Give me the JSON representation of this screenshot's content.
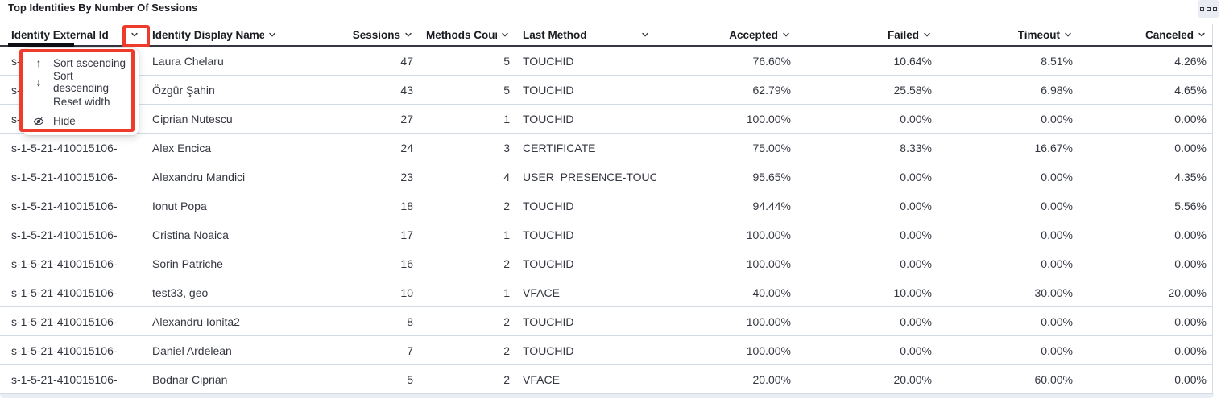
{
  "panel": {
    "title": "Top Identities By Number Of Sessions",
    "options_button_icon": "boxes-horizontal-icon"
  },
  "annotation_color": "#ee3b2b",
  "menu": {
    "items": [
      {
        "icon": "arrow-up",
        "label": "Sort ascending"
      },
      {
        "icon": "arrow-down",
        "label": "Sort descending"
      },
      {
        "icon": "",
        "label": "Reset width"
      },
      {
        "icon": "eye-slash",
        "label": "Hide"
      }
    ]
  },
  "table": {
    "columns": [
      {
        "label": "Identity External Id",
        "align": "left"
      },
      {
        "label": "Identity Display Name",
        "align": "left"
      },
      {
        "label": "Sessions",
        "align": "right"
      },
      {
        "label": "Methods Count",
        "align": "right"
      },
      {
        "label": "Last Method",
        "align": "left"
      },
      {
        "label": "Accepted",
        "align": "right"
      },
      {
        "label": "Failed",
        "align": "right"
      },
      {
        "label": "Timeout",
        "align": "right"
      },
      {
        "label": "Canceled",
        "align": "right"
      }
    ],
    "rows": [
      [
        "s-1-5-21-410015106-",
        "Laura Chelaru",
        "47",
        "5",
        "TOUCHID",
        "76.60%",
        "10.64%",
        "8.51%",
        "4.26%"
      ],
      [
        "s-1-5-21-410015106-",
        "Özgür Şahin",
        "43",
        "5",
        "TOUCHID",
        "62.79%",
        "25.58%",
        "6.98%",
        "4.65%"
      ],
      [
        "s-1-5-21-410015106-",
        "Ciprian Nutescu",
        "27",
        "1",
        "TOUCHID",
        "100.00%",
        "0.00%",
        "0.00%",
        "0.00%"
      ],
      [
        "s-1-5-21-410015106-",
        "Alex Encica",
        "24",
        "3",
        "CERTIFICATE",
        "75.00%",
        "8.33%",
        "16.67%",
        "0.00%"
      ],
      [
        "s-1-5-21-410015106-",
        "Alexandru Mandici",
        "23",
        "4",
        "USER_PRESENCE-TOUC",
        "95.65%",
        "0.00%",
        "0.00%",
        "4.35%"
      ],
      [
        "s-1-5-21-410015106-",
        "Ionut Popa",
        "18",
        "2",
        "TOUCHID",
        "94.44%",
        "0.00%",
        "0.00%",
        "5.56%"
      ],
      [
        "s-1-5-21-410015106-",
        "Cristina Noaica",
        "17",
        "1",
        "TOUCHID",
        "100.00%",
        "0.00%",
        "0.00%",
        "0.00%"
      ],
      [
        "s-1-5-21-410015106-",
        "Sorin Patriche",
        "16",
        "2",
        "TOUCHID",
        "100.00%",
        "0.00%",
        "0.00%",
        "0.00%"
      ],
      [
        "s-1-5-21-410015106-",
        "test33, geo",
        "10",
        "1",
        "VFACE",
        "40.00%",
        "10.00%",
        "30.00%",
        "20.00%"
      ],
      [
        "s-1-5-21-410015106-",
        "Alexandru Ionita2",
        "8",
        "2",
        "TOUCHID",
        "100.00%",
        "0.00%",
        "0.00%",
        "0.00%"
      ],
      [
        "s-1-5-21-410015106-",
        "Daniel Ardelean",
        "7",
        "2",
        "TOUCHID",
        "100.00%",
        "0.00%",
        "0.00%",
        "0.00%"
      ],
      [
        "s-1-5-21-410015106-",
        "Bodnar Ciprian",
        "5",
        "2",
        "VFACE",
        "20.00%",
        "20.00%",
        "60.00%",
        "0.00%"
      ]
    ]
  }
}
